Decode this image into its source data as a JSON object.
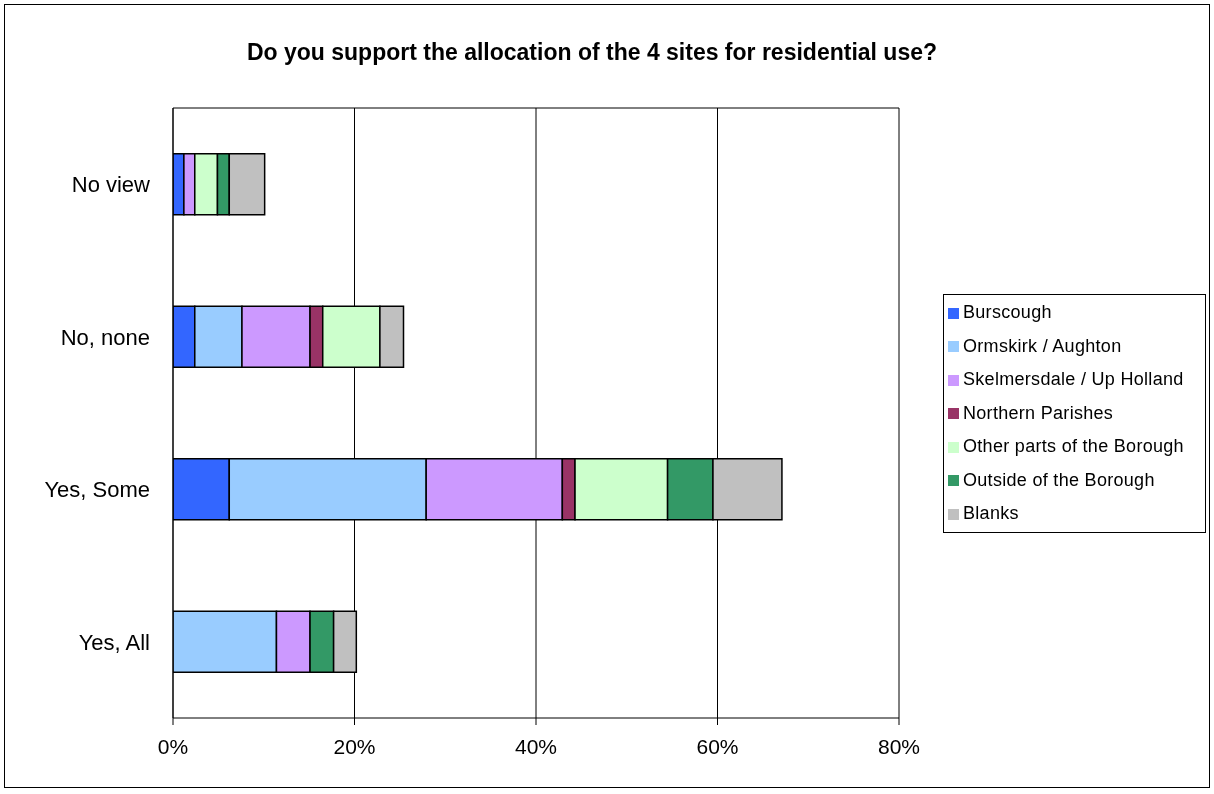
{
  "chart_data": {
    "type": "bar",
    "orientation": "horizontal",
    "stacked": true,
    "title": "Do you support the allocation of the 4 sites for residential use?",
    "categories": [
      "No view",
      "No, none",
      "Yes, Some",
      "Yes, All"
    ],
    "series": [
      {
        "name": "Burscough",
        "color": "#3366ff",
        "values": [
          1.2,
          2.4,
          6.2,
          0
        ]
      },
      {
        "name": "Ormskirk / Aughton",
        "color": "#99ccff",
        "values": [
          0,
          5.2,
          21.7,
          11.4
        ]
      },
      {
        "name": "Skelmersdale / Up Holland",
        "color": "#cc99ff",
        "values": [
          1.2,
          7.5,
          15.0,
          3.7
        ]
      },
      {
        "name": "Northern Parishes",
        "color": "#993366",
        "values": [
          0,
          1.4,
          1.4,
          0
        ]
      },
      {
        "name": "Other parts of the Borough",
        "color": "#ccffcc",
        "values": [
          2.5,
          6.3,
          10.2,
          0
        ]
      },
      {
        "name": "Outside of the Borough",
        "color": "#339966",
        "values": [
          1.3,
          0,
          5.0,
          2.6
        ]
      },
      {
        "name": "Blanks",
        "color": "#c0c0c0",
        "values": [
          3.9,
          2.6,
          7.6,
          2.5
        ]
      }
    ],
    "xlim": [
      0,
      80
    ],
    "xticks": [
      {
        "value": 0,
        "label": "0%"
      },
      {
        "value": 20,
        "label": "20%"
      },
      {
        "value": 40,
        "label": "40%"
      },
      {
        "value": 60,
        "label": "60%"
      },
      {
        "value": 80,
        "label": "80%"
      }
    ],
    "grid": "x",
    "legend": "right"
  }
}
